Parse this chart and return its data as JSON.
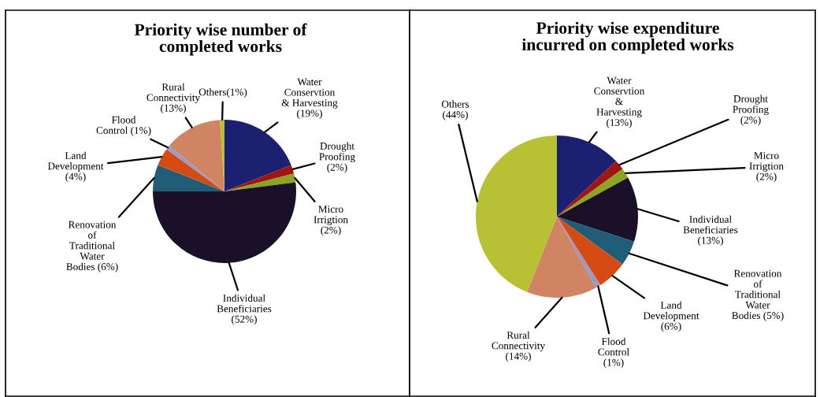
{
  "chart_data": [
    {
      "type": "pie",
      "title": "Priority wise number of\ncompleted works",
      "categories": [
        "Water\nConservtion\n& Harvesting\n(19%)",
        "Drought\nProofing\n(2%)",
        "Micro\nIrrigtion\n(2%)",
        "Individual\nBeneficiaries\n(52%)",
        "Renovation\nof\nTraditional\nWater\nBodies (6%)",
        "Land\nDevelopment\n(4%)",
        "Flood\nControl (1%)",
        "Rural\nConnectivity\n(13%)",
        "Others(1%)"
      ],
      "values": [
        19,
        2,
        2,
        52,
        6,
        4,
        1,
        13,
        1
      ],
      "colors": [
        "#1c2070",
        "#a01414",
        "#8ca424",
        "#1a1028",
        "#1e5c78",
        "#d44c14",
        "#9a9ac8",
        "#d08464",
        "#b8c034"
      ]
    },
    {
      "type": "pie",
      "title": "Priority wise expenditure\nincurred on completed works",
      "categories": [
        "Water\nConservtion\n&\nHarvesting\n(13%)",
        "Drought\nProofing\n(2%)",
        "Micro\nIrrigtion\n(2%)",
        "Individual\nBeneficiaries\n(13%)",
        "Renovation\nof\nTraditional\nWater\nBodies (5%)",
        "Land\nDevelopment\n(6%)",
        "Flood\nControl\n(1%)",
        "Rural\nConnectivity\n(14%)",
        "Others\n(44%)"
      ],
      "values": [
        13,
        2,
        2,
        13,
        5,
        6,
        1,
        14,
        44
      ],
      "colors": [
        "#1c2070",
        "#a01414",
        "#8ca424",
        "#1a1028",
        "#1e5c78",
        "#d44c14",
        "#9a9ac8",
        "#d08464",
        "#b8c034"
      ]
    }
  ]
}
